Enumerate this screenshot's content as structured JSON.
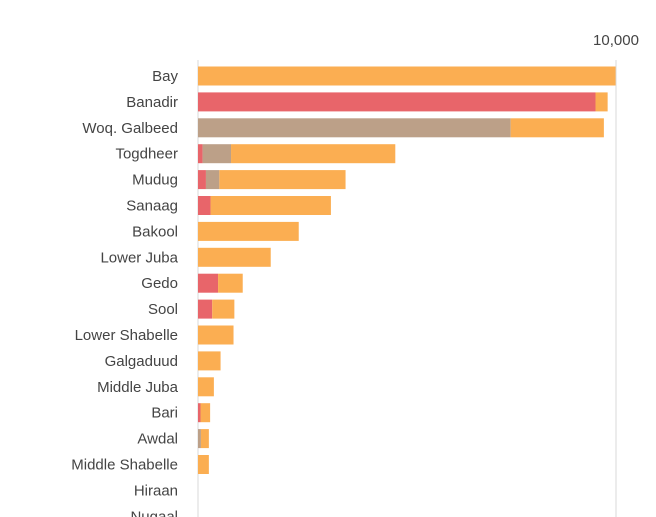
{
  "chart_data": {
    "type": "bar",
    "orientation": "horizontal",
    "stacked": true,
    "title": "",
    "xlabel": "",
    "ylabel": "",
    "xlim": [
      0,
      10000
    ],
    "x_ticks": [
      {
        "value": 10000,
        "label": "10,000"
      }
    ],
    "x_tick_position": "top",
    "grid": "vertical line at 10,000",
    "legend": "none",
    "categories": [
      "Bay",
      "Banadir",
      "Woq. Galbeed",
      "Togdheer",
      "Mudug",
      "Sanaag",
      "Bakool",
      "Lower Juba",
      "Gedo",
      "Sool",
      "Lower Shabelle",
      "Galgaduud",
      "Middle Juba",
      "Bari",
      "Awdal",
      "Middle Shabelle",
      "Hiraan",
      "Nugaal"
    ],
    "series": [
      {
        "color": "#E8656A",
        "values": [
          0,
          9510,
          0,
          110,
          190,
          300,
          0,
          0,
          480,
          340,
          0,
          0,
          0,
          60,
          0,
          0,
          0,
          0
        ]
      },
      {
        "color": "#BCA088",
        "values": [
          0,
          0,
          7480,
          680,
          320,
          0,
          0,
          0,
          0,
          0,
          0,
          0,
          0,
          0,
          70,
          0,
          0,
          0
        ]
      },
      {
        "color": "#FBAE52",
        "values": [
          9990,
          290,
          2230,
          3930,
          3020,
          2880,
          2410,
          1740,
          590,
          530,
          850,
          540,
          380,
          230,
          190,
          260,
          0,
          0
        ]
      }
    ]
  }
}
